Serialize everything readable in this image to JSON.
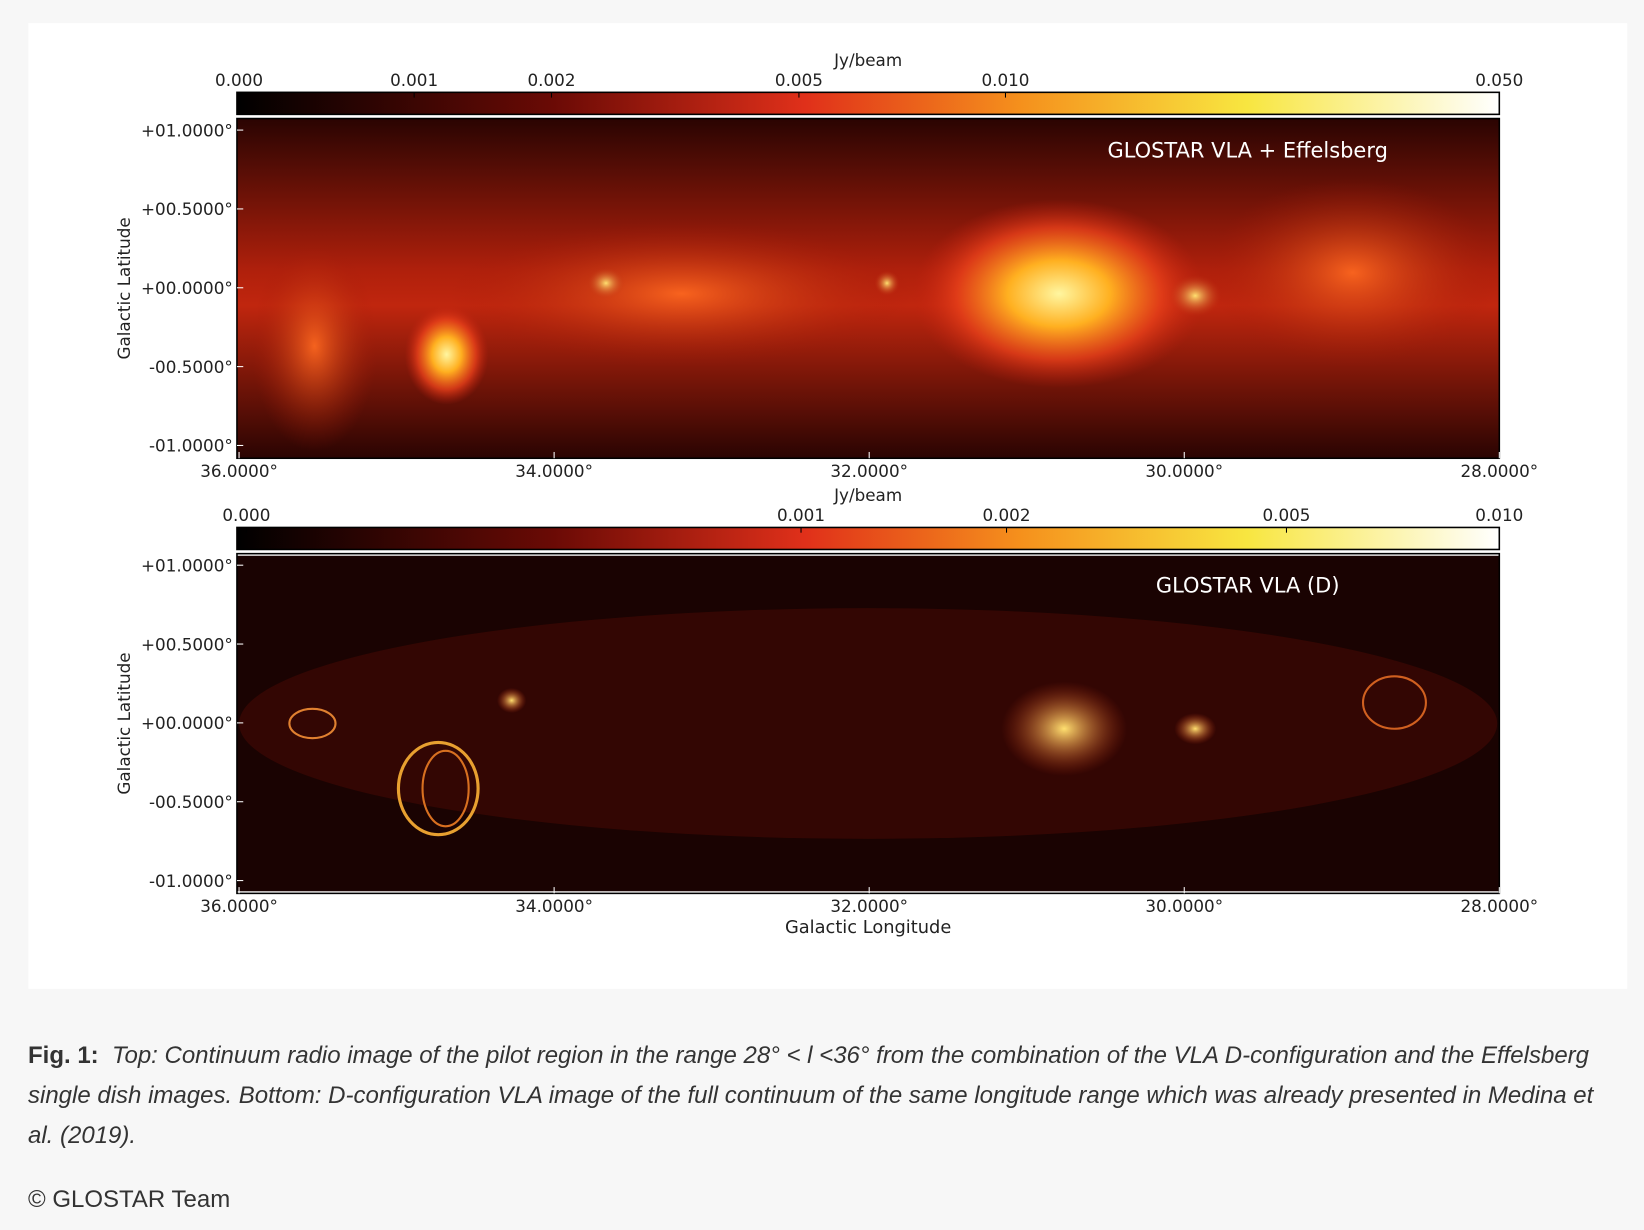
{
  "figure": {
    "panels": [
      {
        "colorbar_unit": "Jy/beam",
        "colorbar_ticks": [
          "0.000",
          "0.001",
          "0.002",
          "0.005",
          "0.010",
          "0.050"
        ],
        "label": "GLOSTAR VLA + Effelsberg",
        "y_axis_label": "Galactic Latitude",
        "y_ticks": [
          "+01.0000°",
          "+00.5000°",
          "+00.0000°",
          "-00.5000°",
          "-01.0000°"
        ],
        "x_ticks": [
          "36.0000°",
          "34.0000°",
          "32.0000°",
          "30.0000°",
          "28.0000°"
        ]
      },
      {
        "colorbar_unit": "Jy/beam",
        "colorbar_ticks": [
          "0.000",
          "0.001",
          "0.002",
          "0.005",
          "0.010"
        ],
        "label": "GLOSTAR VLA (D)",
        "y_axis_label": "Galactic Latitude",
        "y_ticks": [
          "+01.0000°",
          "+00.5000°",
          "+00.0000°",
          "-00.5000°",
          "-01.0000°"
        ],
        "x_ticks": [
          "36.0000°",
          "34.0000°",
          "32.0000°",
          "30.0000°",
          "28.0000°"
        ]
      }
    ],
    "x_axis_label": "Galactic Longitude"
  },
  "caption": {
    "label": "Fig. 1:",
    "text": "Top: Continuum radio image of the pilot region in the range 28° < l <36° from the combination of the VLA D-configuration and the Effelsberg single dish images. Bottom: D-configuration VLA image of the full continuum of the same longitude range which was already presented in Medina et al. (2019)."
  },
  "credit": "© GLOSTAR Team"
}
